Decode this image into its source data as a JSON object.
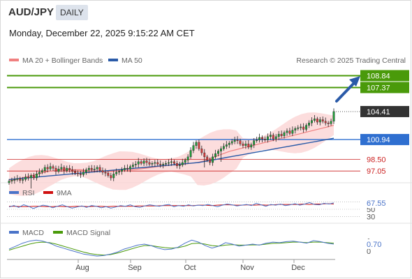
{
  "header": {
    "pair": "AUD/JPY",
    "period": "DAILY",
    "datetime": "Monday, December 22, 2025 9:15:22 AM CET"
  },
  "legend": {
    "ma20": "MA 20 + Bollinger Bands",
    "ma50": "MA 50",
    "credit": "Research © 2025 Trading Central",
    "rsi": "RSI",
    "rsi_ma": "9MA",
    "macd": "MACD",
    "macd_signal": "MACD Signal"
  },
  "colors": {
    "up": "#1f9e3a",
    "down": "#d83a3a",
    "ma20": "#f08080",
    "ma50": "#2b5ba8",
    "band": "#fbd5d5",
    "target": "#4a9a0a",
    "support": "#cc2222",
    "pivot": "#2f6fd0",
    "arrow": "#2a5aa8",
    "price_tag": "#333333",
    "rsi": "#4a73c8",
    "rsi_ma": "#d01010",
    "macd": "#4a73c8",
    "macd_signal": "#4a9a0a"
  },
  "chart_data": [
    {
      "type": "candlestick",
      "title": "AUD/JPY",
      "ylim": [
        95.6,
        110
      ],
      "x_ticks": [
        "Aug",
        "Sep",
        "Oct",
        "Nov",
        "Dec"
      ],
      "close_label": "104.41",
      "levels": [
        {
          "value": 108.84,
          "label": "108.84",
          "kind": "target"
        },
        {
          "value": 107.37,
          "label": "107.37",
          "kind": "target"
        },
        {
          "value": 100.94,
          "label": "100.94",
          "kind": "pivot"
        },
        {
          "value": 98.5,
          "label": "98.50",
          "kind": "support"
        },
        {
          "value": 97.05,
          "label": "97.05",
          "kind": "support"
        }
      ],
      "close": [
        95.8,
        95.9,
        96.0,
        96.1,
        95.9,
        96.0,
        96.3,
        96.2,
        96.5,
        96.2,
        96.7,
        96.9,
        97.1,
        97.5,
        97.3,
        97.6,
        97.4,
        97.0,
        97.3,
        97.5,
        97.1,
        97.4,
        97.2,
        97.0,
        96.8,
        96.7,
        96.6,
        96.9,
        97.2,
        97.4,
        97.2,
        97.3,
        97.5,
        97.1,
        96.9,
        96.8,
        96.5,
        96.2,
        96.7,
        96.9,
        97.0,
        97.2,
        97.4,
        97.3,
        97.6,
        97.8,
        97.9,
        98.2,
        98.0,
        98.3,
        98.1,
        97.9,
        98.0,
        98.1,
        97.9,
        97.8,
        97.9,
        98.0,
        98.1,
        98.2,
        98.0,
        97.7,
        97.8,
        98.1,
        98.4,
        98.8,
        99.6,
        100.2,
        100.6,
        99.8,
        99.3,
        98.8,
        98.4,
        98.1,
        98.8,
        99.2,
        99.5,
        99.8,
        100.1,
        100.3,
        100.5,
        100.7,
        100.9,
        100.8,
        100.4,
        100.2,
        100.4,
        100.0,
        100.3,
        100.8,
        100.9,
        101.2,
        101.0,
        100.9,
        101.3,
        101.5,
        101.0,
        101.3,
        101.6,
        101.4,
        101.8,
        102.0,
        101.7,
        102.1,
        102.3,
        102.4,
        102.5,
        102.2,
        102.7,
        103.0,
        103.3,
        103.5,
        103.1,
        103.4,
        103.2,
        103.0,
        102.9,
        103.2,
        104.4
      ],
      "ma20": [
        95.8,
        96.0,
        96.2,
        96.4,
        96.6,
        96.8,
        97.0,
        97.1,
        97.2,
        97.2,
        97.2,
        97.2,
        97.1,
        97.0,
        97.0,
        97.0,
        97.0,
        97.1,
        97.1,
        97.2,
        97.3,
        97.4,
        97.5,
        97.6,
        97.7,
        97.8,
        97.8,
        97.9,
        98.0,
        98.1,
        98.3,
        98.6,
        98.9,
        99.2,
        99.5,
        99.7,
        99.9,
        100.1,
        100.3,
        100.5,
        100.7,
        100.9,
        101.1,
        101.3,
        101.5,
        101.7,
        101.9,
        102.1,
        102.3,
        102.5,
        102.7
      ],
      "ma50": [
        96.0,
        96.1,
        96.2,
        96.3,
        96.4,
        96.5,
        96.6,
        96.7,
        96.8,
        96.9,
        97.0,
        97.1,
        97.2,
        97.3,
        97.4,
        97.5,
        97.6,
        97.7,
        97.8,
        97.9,
        98.0,
        98.1,
        98.3,
        98.5,
        98.7,
        98.9,
        99.1,
        99.3,
        99.5,
        99.7,
        99.9,
        100.1,
        100.3,
        100.5,
        100.7,
        100.9,
        101.1
      ]
    },
    {
      "type": "line",
      "title": "RSI",
      "y_ticks": [
        "70",
        "50",
        "30"
      ],
      "value_label": "67.55",
      "series": [
        {
          "name": "RSI",
          "values": [
            56,
            60,
            55,
            62,
            58,
            52,
            57,
            61,
            59,
            54,
            58,
            62,
            57,
            53,
            56,
            59,
            55,
            60,
            58,
            54,
            57,
            53,
            56,
            60,
            58,
            62,
            57,
            55,
            59,
            62,
            60,
            58,
            61,
            63,
            57,
            60,
            58,
            62,
            59,
            61,
            60,
            63,
            60,
            57,
            61,
            64,
            62,
            59,
            61,
            63,
            60,
            66,
            62,
            58,
            63,
            61,
            64,
            60,
            62,
            65,
            61,
            64,
            68,
            63,
            62,
            66,
            64,
            67
          ]
        },
        {
          "name": "9MA",
          "values": [
            58,
            58,
            57,
            57,
            58,
            58,
            57,
            57,
            58,
            57,
            57,
            58,
            58,
            57,
            58,
            58,
            57,
            58,
            58,
            58,
            58,
            59,
            59,
            59,
            59,
            60,
            60,
            60,
            60,
            60,
            60,
            61,
            61,
            60,
            61,
            62,
            62,
            61,
            61,
            62,
            61,
            62,
            61,
            62,
            63,
            63,
            63,
            63,
            64,
            63,
            64,
            64,
            65,
            64
          ]
        }
      ]
    },
    {
      "type": "line",
      "title": "MACD",
      "y_ticks": [
        "1",
        "0"
      ],
      "value_label": "0.70",
      "series": [
        {
          "name": "MACD",
          "values": [
            0.2,
            0.5,
            0.8,
            1.0,
            1.1,
            1.0,
            0.8,
            0.5,
            0.3,
            0.1,
            -0.1,
            -0.3,
            -0.4,
            -0.5,
            -0.45,
            -0.3,
            -0.1,
            0.2,
            0.4,
            0.6,
            0.7,
            0.55,
            0.3,
            0.15,
            0.2,
            0.4,
            0.8,
            1.1,
            0.9,
            0.55,
            0.3,
            0.5,
            0.85,
            0.7,
            0.5,
            0.6,
            0.7,
            0.6,
            0.8,
            0.9,
            0.85,
            0.95,
            1.0,
            0.9,
            0.8,
            1.05,
            0.95,
            0.8,
            0.7
          ]
        },
        {
          "name": "MACD Signal",
          "values": [
            0.1,
            0.3,
            0.5,
            0.7,
            0.85,
            0.9,
            0.85,
            0.7,
            0.5,
            0.3,
            0.1,
            -0.1,
            -0.25,
            -0.35,
            -0.4,
            -0.35,
            -0.2,
            0.0,
            0.2,
            0.4,
            0.55,
            0.55,
            0.45,
            0.35,
            0.3,
            0.35,
            0.5,
            0.75,
            0.8,
            0.7,
            0.55,
            0.5,
            0.6,
            0.65,
            0.6,
            0.6,
            0.62,
            0.62,
            0.7,
            0.78,
            0.8,
            0.85,
            0.9,
            0.9,
            0.85,
            0.9,
            0.9,
            0.85,
            0.8
          ]
        }
      ]
    }
  ]
}
